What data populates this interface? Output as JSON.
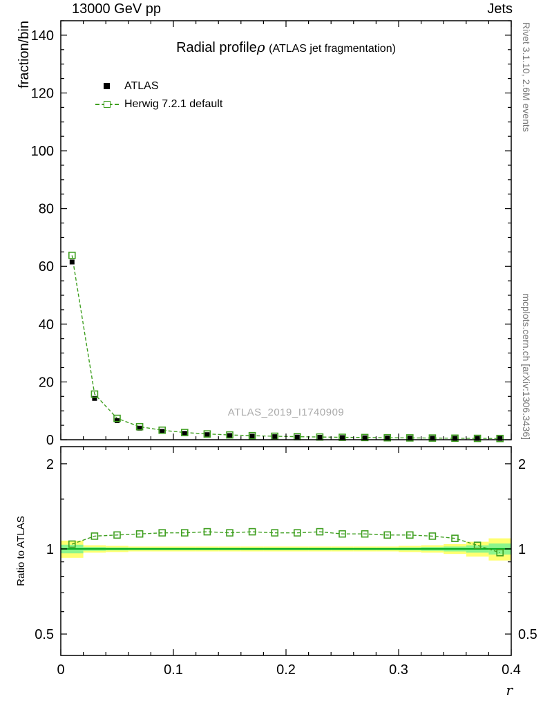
{
  "header": {
    "left": "13000 GeV pp",
    "right": "Jets"
  },
  "title": {
    "main": "Radial profile",
    "rho": "ρ",
    "paren": "(ATLAS jet fragmentation)"
  },
  "legend": {
    "items": [
      {
        "label": "ATLAS"
      },
      {
        "label": "Herwig 7.2.1 default"
      }
    ]
  },
  "side": {
    "top": "Rivet 3.1.10,  2.6M events",
    "bottom": "mcplots.cern.ch [arXiv:1306.3436]"
  },
  "watermark": "ATLAS_2019_I1740909",
  "chart_data": {
    "type": "line",
    "title": "Radial profile ρ (ATLAS jet fragmentation)",
    "xlabel": "r",
    "ylabel": "fraction/bin",
    "ratio_ylabel": "Ratio to ATLAS",
    "x": [
      0.01,
      0.03,
      0.05,
      0.07,
      0.09,
      0.11,
      0.13,
      0.15,
      0.17,
      0.19,
      0.21,
      0.23,
      0.25,
      0.27,
      0.29,
      0.31,
      0.33,
      0.35,
      0.37,
      0.39
    ],
    "bin_half_width": 0.01,
    "series": [
      {
        "name": "ATLAS",
        "marker": "filled-square",
        "color": "#000000",
        "values": [
          61.5,
          14.3,
          6.6,
          4.0,
          2.9,
          2.2,
          1.75,
          1.45,
          1.22,
          1.05,
          0.92,
          0.82,
          0.74,
          0.67,
          0.61,
          0.56,
          0.52,
          0.49,
          0.46,
          0.44
        ]
      },
      {
        "name": "Herwig 7.2.1 default",
        "marker": "open-square",
        "color": "#3f9f20",
        "line": "dashed",
        "values": [
          63.8,
          15.8,
          7.4,
          4.5,
          3.3,
          2.5,
          2.0,
          1.66,
          1.4,
          1.2,
          1.05,
          0.94,
          0.84,
          0.76,
          0.68,
          0.63,
          0.58,
          0.53,
          0.47,
          0.43
        ]
      }
    ],
    "ratio": {
      "reference": "ATLAS",
      "values": [
        1.04,
        1.11,
        1.12,
        1.13,
        1.14,
        1.14,
        1.15,
        1.14,
        1.15,
        1.14,
        1.14,
        1.15,
        1.13,
        1.13,
        1.12,
        1.12,
        1.11,
        1.09,
        1.03,
        0.97
      ],
      "band_outer_halfwidth": [
        0.07,
        0.03,
        0.025,
        0.02,
        0.02,
        0.02,
        0.02,
        0.02,
        0.02,
        0.02,
        0.02,
        0.02,
        0.02,
        0.02,
        0.02,
        0.025,
        0.03,
        0.04,
        0.06,
        0.09
      ],
      "band_inner_halfwidth": [
        0.035,
        0.015,
        0.012,
        0.01,
        0.01,
        0.01,
        0.01,
        0.01,
        0.01,
        0.01,
        0.01,
        0.01,
        0.01,
        0.01,
        0.01,
        0.012,
        0.015,
        0.02,
        0.03,
        0.045
      ],
      "band_outer_color": "#ffff70",
      "band_inner_color": "#8cf58c",
      "reference_line_color": "#00a61b"
    },
    "axes": {
      "x": {
        "min": 0,
        "max": 0.4,
        "major_ticks": [
          0,
          0.1,
          0.2,
          0.3,
          0.4
        ],
        "major_tick_labels": [
          "0",
          "0.1",
          "0.2",
          "0.3",
          "0.4"
        ],
        "minor_step": 0.02
      },
      "y_top": {
        "min": 0,
        "max": 145,
        "major_step": 20,
        "minor_step": 5,
        "major_tick_labels": [
          "0",
          "20",
          "40",
          "60",
          "80",
          "100",
          "120",
          "140"
        ]
      },
      "y_ratio": {
        "scale": "log",
        "min": 0.42,
        "max": 2.3,
        "major_ticks": [
          0.5,
          1,
          2
        ],
        "major_tick_labels": [
          "0.5",
          "1",
          "2"
        ],
        "minor_ticks": [
          0.6,
          0.7,
          0.8,
          0.9,
          1.5
        ]
      }
    },
    "legend_position": "top-left",
    "grid": false
  }
}
